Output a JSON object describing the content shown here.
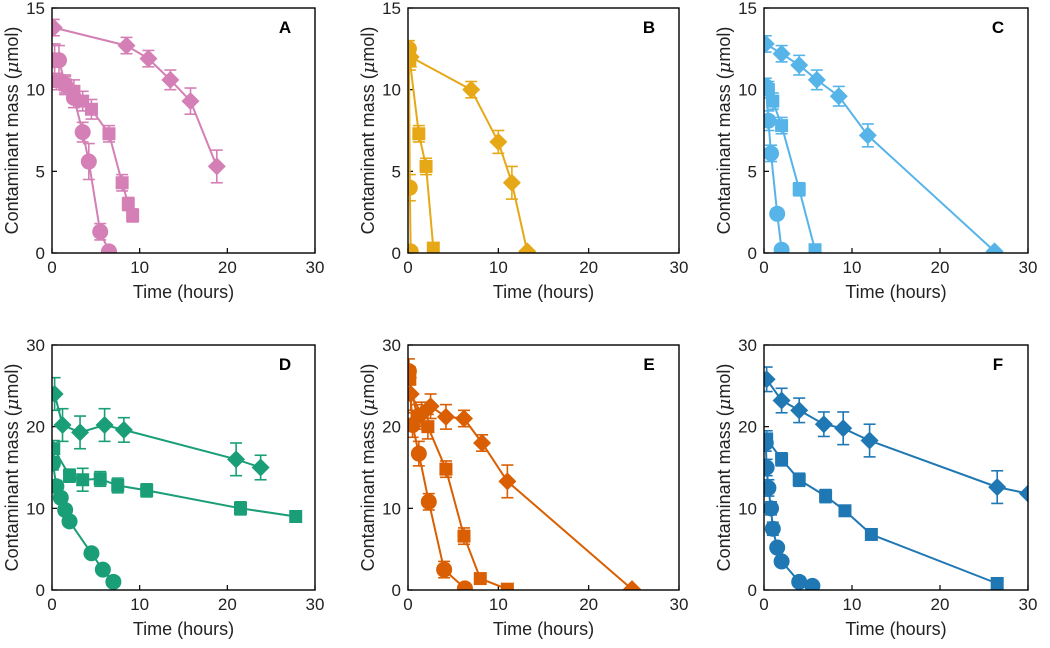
{
  "chart_data": [
    {
      "type": "line",
      "panel": "A",
      "color": "#d47fb5",
      "xlabel": "Time (hours)",
      "ylabel_prefix": "Contaminant mass (",
      "ylabel_mu": "μ",
      "ylabel_suffix": "mol)",
      "xlim": [
        0,
        30
      ],
      "ylim": [
        0,
        15
      ],
      "xticks": [
        "0",
        "10",
        "20",
        "30"
      ],
      "yticks": [
        "0",
        "5",
        "10",
        "15"
      ],
      "series": [
        {
          "name": "circles",
          "marker": "circle",
          "x": [
            0.3,
            0.8,
            1.5,
            2.5,
            3.5,
            4.2,
            5.5,
            6.5
          ],
          "y": [
            11.8,
            11.8,
            10.3,
            9.5,
            7.4,
            5.6,
            1.3,
            0.1
          ],
          "err": [
            1.0,
            0.9,
            0.5,
            0.6,
            0.6,
            1.1,
            0.5,
            0.1
          ]
        },
        {
          "name": "squares",
          "marker": "square",
          "x": [
            0.5,
            1.5,
            2.5,
            3.5,
            4.5,
            6.5,
            8.0,
            8.7,
            9.2
          ],
          "y": [
            10.5,
            10.3,
            9.9,
            9.3,
            8.8,
            7.3,
            4.3,
            3.0,
            2.3
          ],
          "err": [
            0.5,
            0.6,
            0.7,
            0.6,
            0.6,
            0.5,
            0.5,
            0.4,
            0.4
          ]
        },
        {
          "name": "diamonds",
          "marker": "diamond",
          "x": [
            0.2,
            8.5,
            11.0,
            13.5,
            15.8,
            18.8
          ],
          "y": [
            13.8,
            12.7,
            11.9,
            10.6,
            9.3,
            5.3
          ],
          "err": [
            0.5,
            0.5,
            0.5,
            0.6,
            0.8,
            1.0
          ]
        }
      ]
    },
    {
      "type": "line",
      "panel": "B",
      "color": "#e6a817",
      "xlabel": "Time (hours)",
      "ylabel_prefix": "Contaminant mass (",
      "ylabel_mu": "μ",
      "ylabel_suffix": "mol)",
      "xlim": [
        0,
        30
      ],
      "ylim": [
        0,
        15
      ],
      "xticks": [
        "0",
        "10",
        "20",
        "30"
      ],
      "yticks": [
        "0",
        "5",
        "10",
        "15"
      ],
      "series": [
        {
          "name": "circles",
          "marker": "circle",
          "x": [
            0.1,
            0.2,
            0.3
          ],
          "y": [
            12.5,
            4.0,
            0.1
          ],
          "err": [
            0.5,
            0.8,
            0.1
          ]
        },
        {
          "name": "squares",
          "marker": "square",
          "x": [
            0.2,
            1.2,
            2.0,
            2.8
          ],
          "y": [
            11.8,
            7.3,
            5.3,
            0.3
          ],
          "err": [
            0.6,
            0.5,
            0.5,
            0.1
          ]
        },
        {
          "name": "diamonds",
          "marker": "diamond",
          "x": [
            0.3,
            7.0,
            10.0,
            11.5,
            13.2
          ],
          "y": [
            12.0,
            10.0,
            6.8,
            4.3,
            0.1
          ],
          "err": [
            0.6,
            0.5,
            0.7,
            1.0,
            0.1
          ]
        }
      ]
    },
    {
      "type": "line",
      "panel": "C",
      "color": "#56b4e9",
      "xlabel": "Time (hours)",
      "ylabel_prefix": "Contaminant mass (",
      "ylabel_mu": "μ",
      "ylabel_suffix": "mol)",
      "xlim": [
        0,
        30
      ],
      "ylim": [
        0,
        15
      ],
      "xticks": [
        "0",
        "10",
        "20",
        "30"
      ],
      "yticks": [
        "0",
        "5",
        "10",
        "15"
      ],
      "series": [
        {
          "name": "circles",
          "marker": "circle",
          "x": [
            0.2,
            0.5,
            0.8,
            1.5,
            2.0
          ],
          "y": [
            10.2,
            8.1,
            6.1,
            2.4,
            0.2
          ],
          "err": [
            0.5,
            0.6,
            0.5,
            0.3,
            0.1
          ]
        },
        {
          "name": "squares",
          "marker": "square",
          "x": [
            0.5,
            1.0,
            2.0,
            4.0,
            5.8
          ],
          "y": [
            10.0,
            9.3,
            7.8,
            3.9,
            0.2
          ],
          "err": [
            0.5,
            0.5,
            0.5,
            0.4,
            0.1
          ]
        },
        {
          "name": "diamonds",
          "marker": "diamond",
          "x": [
            0.2,
            2.0,
            4.0,
            6.0,
            8.5,
            11.8,
            26.2
          ],
          "y": [
            12.8,
            12.2,
            11.5,
            10.6,
            9.6,
            7.2,
            0.1
          ],
          "err": [
            0.5,
            0.5,
            0.6,
            0.6,
            0.6,
            0.7,
            0.1
          ]
        }
      ]
    },
    {
      "type": "line",
      "panel": "D",
      "color": "#1a9e77",
      "xlabel": "Time (hours)",
      "ylabel_prefix": "Contaminant mass (",
      "ylabel_mu": "μ",
      "ylabel_suffix": "mol)",
      "xlim": [
        0,
        30
      ],
      "ylim": [
        0,
        30
      ],
      "xticks": [
        "0",
        "10",
        "20",
        "30"
      ],
      "yticks": [
        "0",
        "10",
        "20",
        "30"
      ],
      "series": [
        {
          "name": "circles",
          "marker": "circle",
          "x": [
            0.1,
            0.5,
            1.0,
            1.5,
            2.0,
            4.5,
            5.8,
            7.0
          ],
          "y": [
            15.5,
            12.7,
            11.3,
            9.8,
            8.4,
            4.5,
            2.5,
            1.0
          ],
          "err": [
            0.8,
            0.7,
            0.6,
            0.6,
            0.6,
            0.4,
            0.3,
            0.2
          ]
        },
        {
          "name": "squares",
          "marker": "square",
          "x": [
            0.2,
            2.0,
            3.5,
            5.5,
            7.5,
            10.8,
            21.5,
            27.8
          ],
          "y": [
            17.3,
            14.0,
            13.5,
            13.6,
            12.8,
            12.2,
            10.0,
            9.0
          ],
          "err": [
            1.0,
            0.8,
            1.4,
            0.9,
            0.9,
            0.8,
            0.8,
            0.7
          ]
        },
        {
          "name": "diamonds",
          "marker": "diamond",
          "x": [
            0.3,
            1.2,
            3.2,
            6.0,
            8.2,
            21.0,
            23.8
          ],
          "y": [
            24.0,
            20.2,
            19.3,
            20.2,
            19.6,
            16.0,
            15.0
          ],
          "err": [
            2.0,
            2.0,
            2.0,
            2.0,
            1.5,
            2.0,
            1.5
          ]
        }
      ]
    },
    {
      "type": "line",
      "panel": "E",
      "color": "#d95f02",
      "xlabel": "Time (hours)",
      "ylabel_prefix": "Contaminant mass (",
      "ylabel_mu": "μ",
      "ylabel_suffix": "mol)",
      "xlim": [
        0,
        30
      ],
      "ylim": [
        0,
        30
      ],
      "xticks": [
        "0",
        "10",
        "20",
        "30"
      ],
      "yticks": [
        "0",
        "10",
        "20",
        "30"
      ],
      "series": [
        {
          "name": "circles",
          "marker": "circle",
          "x": [
            0.1,
            0.5,
            1.2,
            2.3,
            4.0,
            6.3
          ],
          "y": [
            26.8,
            20.2,
            16.7,
            10.8,
            2.5,
            0.2
          ],
          "err": [
            1.5,
            1.5,
            1.5,
            1.0,
            1.0,
            0.2
          ]
        },
        {
          "name": "squares",
          "marker": "square",
          "x": [
            0.2,
            1.0,
            2.2,
            4.2,
            6.2,
            8.0,
            11.0
          ],
          "y": [
            25.8,
            21.2,
            20.0,
            14.8,
            6.6,
            1.4,
            0.1
          ],
          "err": [
            1.5,
            1.5,
            1.5,
            1.0,
            1.0,
            0.3,
            0.1
          ]
        },
        {
          "name": "diamonds",
          "marker": "diamond",
          "x": [
            0.3,
            1.5,
            2.5,
            4.2,
            6.2,
            8.2,
            11.0,
            24.8
          ],
          "y": [
            24.0,
            21.5,
            22.5,
            21.2,
            21.0,
            18.0,
            13.3,
            0.1
          ],
          "err": [
            2.0,
            1.5,
            1.5,
            1.5,
            1.0,
            1.0,
            2.0,
            0.1
          ]
        }
      ]
    },
    {
      "type": "line",
      "panel": "F",
      "color": "#1f78b4",
      "xlabel": "Time (hours)",
      "ylabel_prefix": "Contaminant mass (",
      "ylabel_mu": "μ",
      "ylabel_suffix": "mol)",
      "xlim": [
        0,
        30
      ],
      "ylim": [
        0,
        30
      ],
      "xticks": [
        "0",
        "10",
        "20",
        "30"
      ],
      "yticks": [
        "0",
        "10",
        "20",
        "30"
      ],
      "series": [
        {
          "name": "circles",
          "marker": "circle",
          "x": [
            0.2,
            0.3,
            0.5,
            0.8,
            1.0,
            1.5,
            2.0,
            4.0,
            5.5
          ],
          "y": [
            18.0,
            15.0,
            12.5,
            10.0,
            7.5,
            5.2,
            3.5,
            1.0,
            0.5
          ],
          "err": [
            1.0,
            1.0,
            1.0,
            0.8,
            0.8,
            0.5,
            0.5,
            0.2,
            0.2
          ]
        },
        {
          "name": "squares",
          "marker": "square",
          "x": [
            0.3,
            2.0,
            4.0,
            7.0,
            9.2,
            12.2,
            26.5
          ],
          "y": [
            18.5,
            16.0,
            13.5,
            11.5,
            9.7,
            6.8,
            0.8
          ],
          "err": [
            1.0,
            0.8,
            0.8,
            0.8,
            0.6,
            0.6,
            0.3
          ]
        },
        {
          "name": "diamonds",
          "marker": "diamond",
          "x": [
            0.3,
            2.0,
            4.0,
            6.8,
            9.0,
            12.0,
            26.5,
            30.0
          ],
          "y": [
            25.8,
            23.2,
            22.0,
            20.3,
            19.8,
            18.3,
            12.6,
            11.8
          ],
          "err": [
            1.5,
            1.5,
            1.5,
            1.5,
            2.0,
            2.0,
            2.0,
            0.0
          ]
        }
      ]
    }
  ]
}
